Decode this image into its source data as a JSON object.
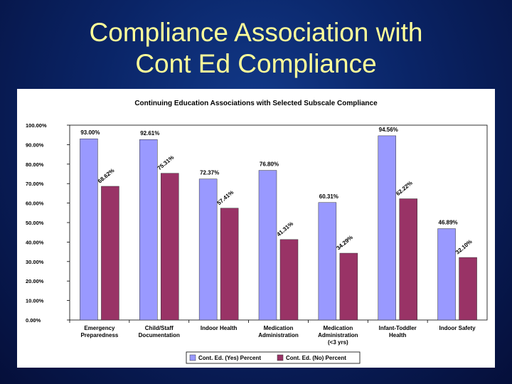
{
  "slide": {
    "title_lines": [
      "Compliance Association with",
      "Cont Ed Compliance"
    ]
  },
  "chart_data": {
    "type": "bar",
    "title": "Continuing Education Associations with Selected Subscale Compliance",
    "categories": [
      [
        "Emergency",
        "Preparedness"
      ],
      [
        "Child/Staff",
        "Documentation"
      ],
      [
        "Indoor Health"
      ],
      [
        "Medication",
        "Administration"
      ],
      [
        "Medication",
        "Administration",
        "(<3 yrs)"
      ],
      [
        "Infant-Toddler",
        "Health"
      ],
      [
        "Indoor Safety"
      ]
    ],
    "series": [
      {
        "name": "Cont. Ed. (Yes) Percent",
        "color": "#9999ff",
        "values": [
          93.0,
          92.61,
          72.37,
          76.8,
          60.31,
          94.56,
          46.89
        ],
        "labels": [
          "93.00%",
          "92.61%",
          "72.37%",
          "76.80%",
          "60.31%",
          "94.56%",
          "46.89%"
        ]
      },
      {
        "name": "Cont. Ed. (No) Percent",
        "color": "#993366",
        "values": [
          68.62,
          75.31,
          57.41,
          41.31,
          34.29,
          62.22,
          32.1
        ],
        "labels": [
          "68.62%",
          "75.31%",
          "57.41%",
          "41.31%",
          "34.29%",
          "62.22%",
          "32.10%"
        ]
      }
    ],
    "yticks": [
      "0.00%",
      "10.00%",
      "20.00%",
      "30.00%",
      "40.00%",
      "50.00%",
      "60.00%",
      "70.00%",
      "80.00%",
      "90.00%",
      "100.00%"
    ],
    "ylim": [
      0,
      100
    ],
    "legend_position": "bottom",
    "grid": false
  }
}
